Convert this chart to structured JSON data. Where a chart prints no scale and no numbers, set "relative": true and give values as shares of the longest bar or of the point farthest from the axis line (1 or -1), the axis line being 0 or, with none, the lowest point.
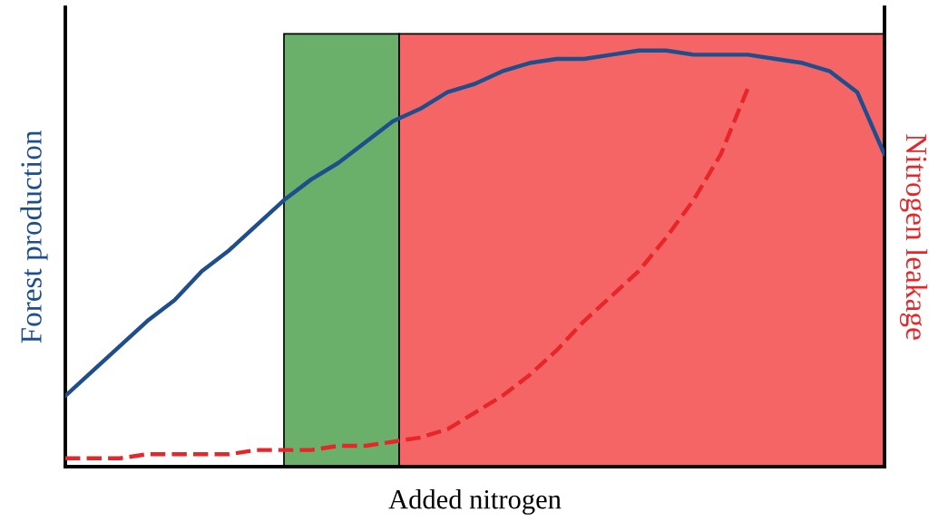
{
  "chart_data": {
    "type": "line",
    "relative": true,
    "xlabel": "Added nitrogen",
    "ylabel": "Forest production",
    "y2label": "Nitrogen leakage",
    "legend": false,
    "categories": [
      null,
      null,
      null,
      null,
      null,
      null,
      null,
      null,
      null,
      null,
      null,
      null,
      null,
      null,
      null,
      null,
      null,
      null,
      null,
      null,
      null,
      null,
      null,
      null,
      null,
      null,
      null,
      null,
      null,
      null,
      null
    ],
    "series": [
      {
        "color": "#1f4e8c",
        "line_style": "solid",
        "values": [
          0.17,
          0.23,
          0.29,
          0.35,
          0.4,
          0.47,
          0.52,
          0.58,
          0.64,
          0.69,
          0.73,
          0.78,
          0.83,
          0.86,
          0.9,
          0.92,
          0.95,
          0.97,
          0.98,
          0.98,
          0.99,
          1.0,
          1.0,
          0.99,
          0.99,
          0.99,
          0.98,
          0.97,
          0.95,
          0.9,
          0.75
        ]
      },
      {
        "color": "#e8262a",
        "line_style": "dashed",
        "values": [
          0.02,
          0.02,
          0.02,
          0.03,
          0.03,
          0.03,
          0.03,
          0.04,
          0.04,
          0.04,
          0.05,
          0.05,
          0.06,
          0.07,
          0.09,
          0.13,
          0.17,
          0.22,
          0.28,
          0.35,
          0.41,
          0.47,
          0.55,
          0.64,
          0.75,
          0.91,
          null,
          null,
          null,
          null,
          null
        ]
      }
    ]
  }
}
